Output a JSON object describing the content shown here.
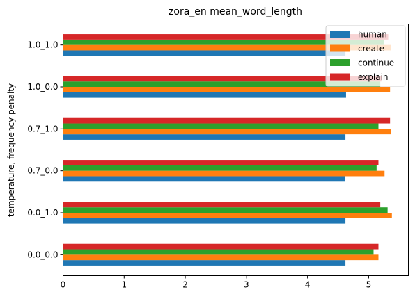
{
  "chart_data": {
    "type": "bar",
    "orientation": "horizontal",
    "title": "zora_en mean_word_length",
    "xlabel": "",
    "ylabel": "temperature, frequency penalty",
    "categories": [
      "0.0_0.0",
      "0.0_1.0",
      "0.7_0.0",
      "0.7_1.0",
      "1.0_0.0",
      "1.0_1.0"
    ],
    "xlim": [
      0,
      5.65
    ],
    "xticks": [
      0,
      1,
      2,
      3,
      4,
      5
    ],
    "grid": false,
    "legend_position": "top-right",
    "series": [
      {
        "name": "human",
        "color": "#1f77b4",
        "values": [
          4.62,
          4.62,
          4.61,
          4.62,
          4.63,
          4.62
        ]
      },
      {
        "name": "create",
        "color": "#ff7f0e",
        "values": [
          5.16,
          5.38,
          5.26,
          5.37,
          5.35,
          5.36
        ]
      },
      {
        "name": "continue",
        "color": "#2ca02c",
        "values": [
          5.08,
          5.31,
          5.13,
          5.16,
          5.19,
          5.25
        ]
      },
      {
        "name": "explain",
        "color": "#d62728",
        "values": [
          5.16,
          5.19,
          5.16,
          5.35,
          5.21,
          5.32
        ]
      }
    ]
  }
}
